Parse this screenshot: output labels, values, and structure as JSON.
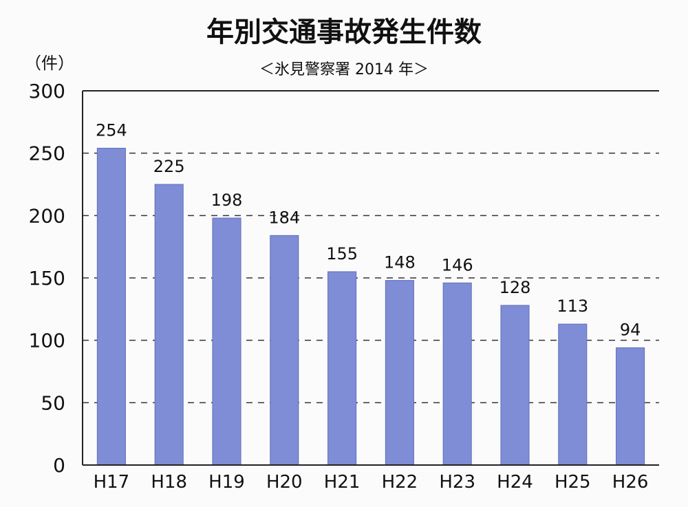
{
  "chart_data": {
    "type": "bar",
    "title": "年別交通事故発生件数",
    "subtitle": "＜氷見警察署 2014 年＞",
    "ylabel": "（件）",
    "xlabel": "",
    "categories": [
      "H17",
      "H18",
      "H19",
      "H20",
      "H21",
      "H22",
      "H23",
      "H24",
      "H25",
      "H26"
    ],
    "values": [
      254,
      225,
      198,
      184,
      155,
      148,
      146,
      128,
      113,
      94
    ],
    "ylim": [
      0,
      300
    ],
    "yticks": [
      0,
      50,
      100,
      150,
      200,
      250,
      300
    ],
    "grid": true,
    "legend": "none",
    "bar_color": "#7f8dd6",
    "bar_edge_color": "#5f6db8",
    "grid_color": "#333333"
  }
}
